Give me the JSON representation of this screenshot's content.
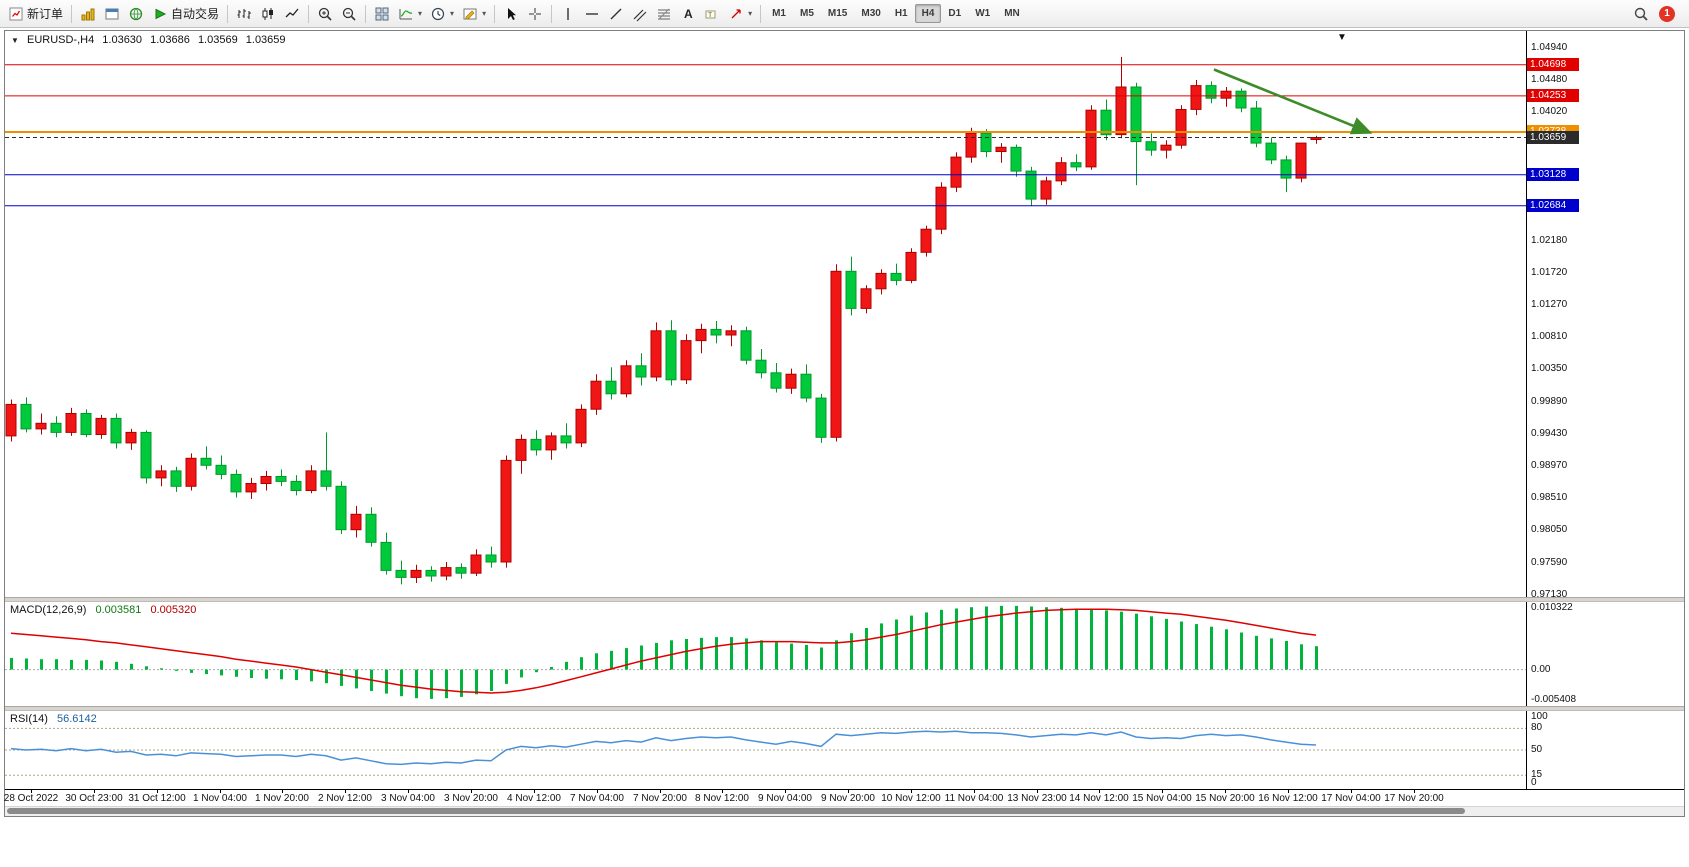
{
  "toolbar": {
    "buttons": [
      {
        "name": "new-order",
        "icon": "new-order",
        "label": "新订单"
      },
      {
        "sep": true
      },
      {
        "name": "history-center",
        "icon": "gold"
      },
      {
        "name": "profiles",
        "icon": "window"
      },
      {
        "name": "market-watch",
        "icon": "globe"
      },
      {
        "name": "autotrading",
        "icon": "play",
        "label": "自动交易"
      },
      {
        "sep": true
      },
      {
        "name": "bar-chart",
        "icon": "bar-chart"
      },
      {
        "name": "candlestick-chart",
        "icon": "candles"
      },
      {
        "name": "line-chart",
        "icon": "line-chart"
      },
      {
        "sep": true
      },
      {
        "name": "zoom-in",
        "icon": "zoom-in"
      },
      {
        "name": "zoom-out",
        "icon": "zoom-out"
      },
      {
        "sep": true
      },
      {
        "name": "tile-windows",
        "icon": "tile"
      },
      {
        "name": "indicators",
        "icon": "indicators",
        "caret": true
      },
      {
        "name": "periods",
        "icon": "clock",
        "caret": true
      },
      {
        "name": "templates",
        "icon": "template",
        "caret": true
      },
      {
        "sep": true
      },
      {
        "name": "cursor",
        "icon": "cursor"
      },
      {
        "name": "crosshair",
        "icon": "crosshair"
      },
      {
        "sep": true
      },
      {
        "name": "vertical-line",
        "icon": "vline"
      },
      {
        "name": "horizontal-line",
        "icon": "hline"
      },
      {
        "name": "trendline",
        "icon": "tline"
      },
      {
        "name": "equidistant-channel",
        "icon": "channel"
      },
      {
        "name": "fibonacci-retracement",
        "icon": "fibo"
      },
      {
        "name": "text",
        "icon": "textA"
      },
      {
        "name": "text-label",
        "icon": "label"
      },
      {
        "name": "arrows",
        "icon": "arrows",
        "caret": true
      },
      {
        "sep": true
      }
    ],
    "timeframes": [
      "M1",
      "M5",
      "M15",
      "M30",
      "H1",
      "H4",
      "D1",
      "W1",
      "MN"
    ],
    "active_timeframe": "H4",
    "notification_count": "1"
  },
  "chart": {
    "title": "EURUSD-,H4",
    "open": "1.03630",
    "high": "1.03686",
    "low": "1.03569",
    "close": "1.03659"
  },
  "levels": [
    {
      "label": "1.04698",
      "value": 1.04698,
      "color": "#e00000",
      "line_width": 1,
      "dash": false
    },
    {
      "label": "1.04253",
      "value": 1.04253,
      "color": "#e00000",
      "line_width": 1,
      "dash": false
    },
    {
      "label": "1.03738",
      "value": 1.03738,
      "color": "#ef8f00",
      "line_width": 2,
      "dash": false
    },
    {
      "label": "1.03659",
      "value": 1.03659,
      "color": "#2b2b2b",
      "line_width": 1,
      "dash": true
    },
    {
      "label": "1.03128",
      "value": 1.03128,
      "color": "#0000cc",
      "line_width": 1,
      "dash": false
    },
    {
      "label": "1.02684",
      "value": 1.02684,
      "color": "#0000cc",
      "line_width": 1,
      "dash": false
    }
  ],
  "price_axis": [
    {
      "t": "1.04940",
      "v": 1.0494
    },
    {
      "t": "1.04480",
      "v": 1.0448
    },
    {
      "t": "1.04020",
      "v": 1.0402
    },
    {
      "t": "1.02180",
      "v": 1.0218
    },
    {
      "t": "1.01720",
      "v": 1.0172
    },
    {
      "t": "1.01270",
      "v": 1.0127
    },
    {
      "t": "1.00810",
      "v": 1.0081
    },
    {
      "t": "1.00350",
      "v": 1.0035
    },
    {
      "t": "0.99890",
      "v": 0.9989
    },
    {
      "t": "0.99430",
      "v": 0.9943
    },
    {
      "t": "0.98970",
      "v": 0.9897
    },
    {
      "t": "0.98510",
      "v": 0.9851
    },
    {
      "t": "0.98050",
      "v": 0.9805
    },
    {
      "t": "0.97590",
      "v": 0.9759
    },
    {
      "t": "0.97130",
      "v": 0.9713
    }
  ],
  "macd": {
    "name": "MACD(12,26,9)",
    "value": "0.003581",
    "signal_value": "0.005320",
    "axis": [
      {
        "t": "0.010322",
        "v": 0.010322
      },
      {
        "t": "0.00",
        "v": 0
      },
      {
        "t": "-0.005408",
        "v": -0.005408
      }
    ]
  },
  "rsi": {
    "name": "RSI(14)",
    "value": "56.6142",
    "axis": [
      {
        "t": "100",
        "v": 100
      },
      {
        "t": "80",
        "v": 80
      },
      {
        "t": "50",
        "v": 50
      },
      {
        "t": "15",
        "v": 15
      },
      {
        "t": "0",
        "v": 0
      }
    ]
  },
  "time_axis": [
    "28 Oct 2022",
    "30 Oct 23:00",
    "31 Oct 12:00",
    "1 Nov 04:00",
    "1 Nov 20:00",
    "2 Nov 12:00",
    "3 Nov 04:00",
    "3 Nov 20:00",
    "4 Nov 12:00",
    "7 Nov 04:00",
    "7 Nov 20:00",
    "8 Nov 12:00",
    "9 Nov 04:00",
    "9 Nov 20:00",
    "10 Nov 12:00",
    "11 Nov 04:00",
    "13 Nov 23:00",
    "14 Nov 12:00",
    "15 Nov 04:00",
    "15 Nov 20:00",
    "16 Nov 12:00",
    "17 Nov 04:00",
    "17 Nov 20:00"
  ],
  "chart_data": {
    "type": "candlestick",
    "symbol": "EURUSD-",
    "timeframe": "H4",
    "price_range": [
      0.971,
      1.0518
    ],
    "colors": {
      "up_fill": "#f01616",
      "up_stroke": "#b00000",
      "down_fill": "#00c93c",
      "down_stroke": "#009a2a",
      "macd_histogram": "#00b43c",
      "macd_signal": "#e00000",
      "rsi_line": "#4a90d9"
    },
    "candles": [
      [
        0.994,
        0.9992,
        0.9932,
        0.9985
      ],
      [
        0.9985,
        0.9995,
        0.9945,
        0.995
      ],
      [
        0.995,
        0.9972,
        0.9942,
        0.9958
      ],
      [
        0.9958,
        0.9968,
        0.9938,
        0.9945
      ],
      [
        0.9945,
        0.998,
        0.994,
        0.9972
      ],
      [
        0.9972,
        0.9978,
        0.9938,
        0.9942
      ],
      [
        0.9942,
        0.997,
        0.9936,
        0.9965
      ],
      [
        0.9965,
        0.9972,
        0.9922,
        0.993
      ],
      [
        0.993,
        0.995,
        0.992,
        0.9945
      ],
      [
        0.9945,
        0.9948,
        0.9872,
        0.988
      ],
      [
        0.988,
        0.9898,
        0.9868,
        0.989
      ],
      [
        0.989,
        0.9896,
        0.986,
        0.9868
      ],
      [
        0.9868,
        0.9915,
        0.9862,
        0.9908
      ],
      [
        0.9908,
        0.9925,
        0.9892,
        0.9898
      ],
      [
        0.9898,
        0.9912,
        0.9878,
        0.9885
      ],
      [
        0.9885,
        0.9892,
        0.9852,
        0.986
      ],
      [
        0.986,
        0.988,
        0.985,
        0.9872
      ],
      [
        0.9872,
        0.989,
        0.9862,
        0.9882
      ],
      [
        0.9882,
        0.9892,
        0.9868,
        0.9875
      ],
      [
        0.9875,
        0.9884,
        0.9855,
        0.9862
      ],
      [
        0.9862,
        0.9898,
        0.9858,
        0.989
      ],
      [
        0.989,
        0.9945,
        0.9862,
        0.9868
      ],
      [
        0.9868,
        0.9875,
        0.98,
        0.9806
      ],
      [
        0.9806,
        0.984,
        0.9795,
        0.9828
      ],
      [
        0.9828,
        0.9838,
        0.9782,
        0.9788
      ],
      [
        0.9788,
        0.9802,
        0.9742,
        0.9748
      ],
      [
        0.9748,
        0.9762,
        0.9728,
        0.9738
      ],
      [
        0.9738,
        0.9756,
        0.973,
        0.9748
      ],
      [
        0.9748,
        0.9754,
        0.9732,
        0.974
      ],
      [
        0.974,
        0.976,
        0.9734,
        0.9752
      ],
      [
        0.9752,
        0.9758,
        0.9736,
        0.9744
      ],
      [
        0.9744,
        0.9778,
        0.974,
        0.977
      ],
      [
        0.977,
        0.9782,
        0.9752,
        0.976
      ],
      [
        0.976,
        0.9912,
        0.9752,
        0.9905
      ],
      [
        0.9905,
        0.9942,
        0.9886,
        0.9935
      ],
      [
        0.9935,
        0.9948,
        0.9912,
        0.992
      ],
      [
        0.992,
        0.9945,
        0.9906,
        0.994
      ],
      [
        0.994,
        0.9958,
        0.9922,
        0.993
      ],
      [
        0.993,
        0.9985,
        0.9924,
        0.9978
      ],
      [
        0.9978,
        1.0028,
        0.997,
        1.0018
      ],
      [
        1.0018,
        1.0038,
        0.9992,
        1.0
      ],
      [
        1.0,
        1.0048,
        0.9995,
        1.004
      ],
      [
        1.004,
        1.0058,
        1.0012,
        1.0024
      ],
      [
        1.0024,
        1.0102,
        1.0018,
        1.009
      ],
      [
        1.009,
        1.0105,
        1.0012,
        1.002
      ],
      [
        1.002,
        1.0085,
        1.0014,
        1.0076
      ],
      [
        1.0076,
        1.01,
        1.0058,
        1.0092
      ],
      [
        1.0092,
        1.0104,
        1.0072,
        1.0084
      ],
      [
        1.0084,
        1.0098,
        1.0068,
        1.009
      ],
      [
        1.009,
        1.0096,
        1.0042,
        1.0048
      ],
      [
        1.0048,
        1.0064,
        1.0022,
        1.003
      ],
      [
        1.003,
        1.0044,
        1.0002,
        1.0008
      ],
      [
        1.0008,
        1.0036,
        1.0,
        1.0028
      ],
      [
        1.0028,
        1.0042,
        0.9988,
        0.9994
      ],
      [
        0.9994,
        1.0,
        0.993,
        0.9938
      ],
      [
        0.9938,
        1.0185,
        0.9932,
        1.0175
      ],
      [
        1.0175,
        1.0196,
        1.0112,
        1.0122
      ],
      [
        1.0122,
        1.0155,
        1.0115,
        1.015
      ],
      [
        1.015,
        1.0178,
        1.0142,
        1.0172
      ],
      [
        1.0172,
        1.0186,
        1.0155,
        1.0162
      ],
      [
        1.0162,
        1.0208,
        1.0158,
        1.0202
      ],
      [
        1.0202,
        1.024,
        1.0196,
        1.0235
      ],
      [
        1.0235,
        1.0302,
        1.0228,
        1.0295
      ],
      [
        1.0295,
        1.0345,
        1.0288,
        1.0338
      ],
      [
        1.0338,
        1.038,
        1.033,
        1.0372
      ],
      [
        1.0372,
        1.0378,
        1.0338,
        1.0346
      ],
      [
        1.0346,
        1.0358,
        1.033,
        1.0352
      ],
      [
        1.0352,
        1.0356,
        1.031,
        1.0318
      ],
      [
        1.0318,
        1.0324,
        1.0268,
        1.0278
      ],
      [
        1.0278,
        1.031,
        1.027,
        1.0304
      ],
      [
        1.0304,
        1.0338,
        1.0298,
        1.033
      ],
      [
        1.033,
        1.0342,
        1.0318,
        1.0324
      ],
      [
        1.0324,
        1.0412,
        1.032,
        1.0405
      ],
      [
        1.0405,
        1.042,
        1.0362,
        1.037
      ],
      [
        1.037,
        1.0481,
        1.0365,
        1.0438
      ],
      [
        1.0438,
        1.0444,
        1.0298,
        1.036
      ],
      [
        1.036,
        1.0372,
        1.034,
        1.0348
      ],
      [
        1.0348,
        1.0362,
        1.0336,
        1.0355
      ],
      [
        1.0355,
        1.0412,
        1.035,
        1.0406
      ],
      [
        1.0406,
        1.0448,
        1.0398,
        1.044
      ],
      [
        1.044,
        1.0446,
        1.0415,
        1.0422
      ],
      [
        1.0422,
        1.0438,
        1.041,
        1.0432
      ],
      [
        1.0432,
        1.0436,
        1.0402,
        1.0408
      ],
      [
        1.0408,
        1.0418,
        1.0352,
        1.0358
      ],
      [
        1.0358,
        1.0366,
        1.0328,
        1.0334
      ],
      [
        1.0334,
        1.034,
        1.0288,
        1.0308
      ],
      [
        1.0308,
        1.0352,
        1.0302,
        1.0358
      ],
      [
        1.0363,
        1.03686,
        1.03569,
        1.03659
      ]
    ],
    "macd": {
      "range": [
        -0.0056,
        0.0104
      ],
      "histogram": [
        0.0018,
        0.0017,
        0.0016,
        0.0016,
        0.0015,
        0.0015,
        0.0014,
        0.0012,
        0.0009,
        0.0005,
        0.0002,
        -0.0002,
        -0.0005,
        -0.0007,
        -0.0009,
        -0.0011,
        -0.0013,
        -0.0014,
        -0.0015,
        -0.0016,
        -0.0018,
        -0.0021,
        -0.0025,
        -0.0029,
        -0.0033,
        -0.0037,
        -0.0041,
        -0.0044,
        -0.0045,
        -0.0044,
        -0.0042,
        -0.0038,
        -0.0033,
        -0.0022,
        -0.0012,
        -0.0004,
        0.0004,
        0.0012,
        0.0019,
        0.0025,
        0.0029,
        0.0033,
        0.0037,
        0.0041,
        0.0045,
        0.0047,
        0.0049,
        0.005,
        0.005,
        0.0048,
        0.0045,
        0.0042,
        0.004,
        0.0038,
        0.0034,
        0.0045,
        0.0056,
        0.0064,
        0.0071,
        0.0077,
        0.0083,
        0.0088,
        0.0092,
        0.0094,
        0.0096,
        0.0097,
        0.0098,
        0.0098,
        0.0097,
        0.0096,
        0.0095,
        0.0094,
        0.0093,
        0.0091,
        0.0089,
        0.0086,
        0.0082,
        0.0078,
        0.0074,
        0.007,
        0.0066,
        0.0062,
        0.0057,
        0.0052,
        0.0048,
        0.0044,
        0.0039,
        0.0036
      ],
      "signal": [
        0.0056,
        0.0054,
        0.0052,
        0.005,
        0.0048,
        0.0046,
        0.0043,
        0.0041,
        0.0038,
        0.0035,
        0.0032,
        0.0029,
        0.0026,
        0.0023,
        0.002,
        0.0016,
        0.0013,
        0.001,
        0.0007,
        0.0004,
        0.0,
        -0.0004,
        -0.0008,
        -0.0012,
        -0.0016,
        -0.002,
        -0.0024,
        -0.0027,
        -0.003,
        -0.0032,
        -0.0034,
        -0.0035,
        -0.0036,
        -0.0035,
        -0.0032,
        -0.0028,
        -0.0023,
        -0.0017,
        -0.0011,
        -0.0005,
        0.0001,
        0.0007,
        0.0013,
        0.0018,
        0.0023,
        0.0028,
        0.0032,
        0.0036,
        0.0039,
        0.0041,
        0.0043,
        0.0043,
        0.0043,
        0.0042,
        0.0041,
        0.0041,
        0.0043,
        0.0046,
        0.005,
        0.0054,
        0.0059,
        0.0064,
        0.0069,
        0.0073,
        0.0077,
        0.0081,
        0.0084,
        0.0087,
        0.0089,
        0.0091,
        0.0092,
        0.0093,
        0.0093,
        0.0093,
        0.0092,
        0.0091,
        0.0089,
        0.0087,
        0.0085,
        0.0082,
        0.0079,
        0.0076,
        0.0072,
        0.0068,
        0.0064,
        0.006,
        0.0056,
        0.0053
      ]
    },
    "rsi": {
      "period": 14,
      "range": [
        0,
        100
      ],
      "levels": [
        80,
        50,
        15
      ],
      "values": [
        52,
        50,
        51,
        49,
        52,
        49,
        51,
        47,
        48,
        43,
        44,
        42,
        46,
        45,
        44,
        41,
        42,
        43,
        43,
        41,
        44,
        42,
        36,
        39,
        35,
        31,
        30,
        32,
        31,
        33,
        32,
        36,
        35,
        50,
        55,
        53,
        56,
        54,
        58,
        62,
        60,
        63,
        61,
        67,
        63,
        66,
        68,
        67,
        68,
        64,
        61,
        58,
        62,
        59,
        55,
        72,
        70,
        72,
        74,
        73,
        75,
        76,
        75,
        76,
        74,
        74,
        73,
        71,
        68,
        70,
        72,
        71,
        74,
        71,
        75,
        68,
        66,
        67,
        66,
        70,
        72,
        70,
        71,
        68,
        64,
        61,
        58,
        57
      ]
    },
    "trend_arrow": {
      "from_index": 80.2,
      "from_price": 1.0463,
      "to_index": 90.6,
      "to_price": 1.0373,
      "color": "#3c8c28"
    }
  }
}
